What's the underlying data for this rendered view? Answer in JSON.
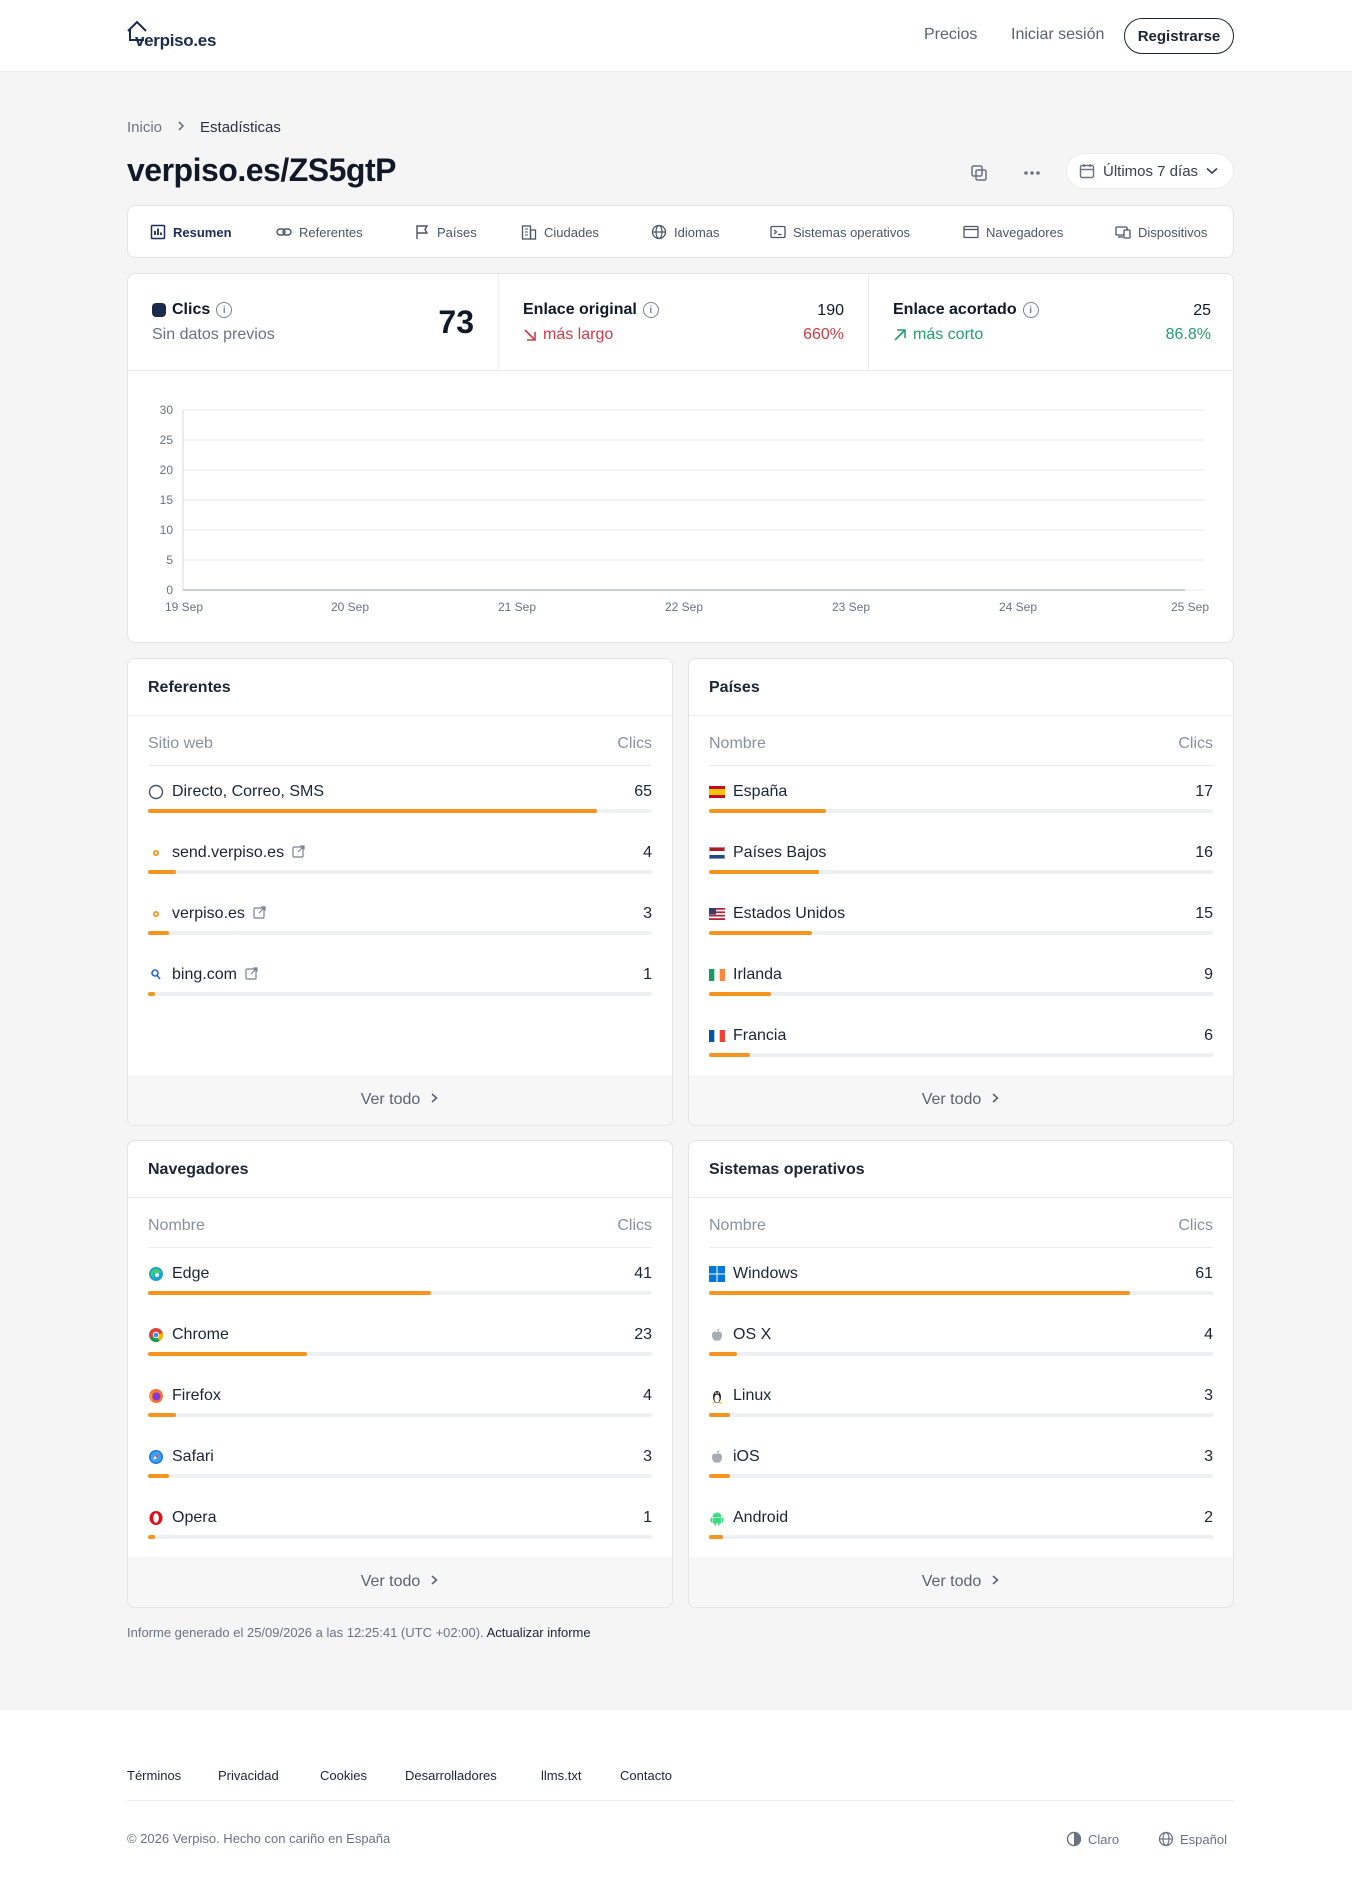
{
  "header": {
    "logo_text": "verpiso.es",
    "nav": [
      "Precios",
      "Iniciar sesión"
    ],
    "register_label": "Registrarse"
  },
  "breadcrumb": {
    "home": "Inicio",
    "current": "Estadísticas"
  },
  "page_title": "verpiso.es/ZS5gtP",
  "range_label": "Últimos 7 días",
  "tabs": [
    {
      "label": "Resumen",
      "icon": "bar-chart-icon"
    },
    {
      "label": "Referentes",
      "icon": "link-icon"
    },
    {
      "label": "Países",
      "icon": "flag-icon"
    },
    {
      "label": "Ciudades",
      "icon": "building-icon"
    },
    {
      "label": "Idiomas",
      "icon": "globe-icon"
    },
    {
      "label": "Sistemas operativos",
      "icon": "terminal-icon"
    },
    {
      "label": "Navegadores",
      "icon": "browser-window-icon"
    },
    {
      "label": "Dispositivos",
      "icon": "devices-icon"
    }
  ],
  "stats": {
    "clicks": {
      "label": "Clics",
      "sub": "Sin datos previos",
      "value": "73"
    },
    "original": {
      "label": "Enlace original",
      "sub": "más largo",
      "value": "190",
      "pct": "660%"
    },
    "shortened": {
      "label": "Enlace acortado",
      "sub": "más corto",
      "value": "25",
      "pct": "86.8%"
    }
  },
  "chart_data": {
    "type": "line",
    "x": [
      "19 Sep",
      "20 Sep",
      "21 Sep",
      "22 Sep",
      "23 Sep",
      "24 Sep",
      "25 Sep"
    ],
    "series": [
      {
        "values": [
          0,
          0,
          0,
          0,
          0,
          0,
          0
        ]
      }
    ],
    "y_ticks": [
      "0",
      "5",
      "10",
      "15",
      "20",
      "25",
      "30"
    ],
    "ylim": [
      0,
      30
    ],
    "grid": true,
    "xlabel": "",
    "ylabel": ""
  },
  "referrers": {
    "title": "Referentes",
    "col_left": "Sitio web",
    "col_right": "Clics",
    "footer": "Ver todo",
    "items": [
      {
        "label": "Directo, Correo, SMS",
        "value": "65",
        "fraction": 0.89,
        "icon": "circle-icon"
      },
      {
        "label": "send.verpiso.es",
        "value": "4",
        "fraction": 0.055,
        "icon": "favicon-icon"
      },
      {
        "label": "verpiso.es",
        "value": "3",
        "fraction": 0.041,
        "icon": "favicon-icon"
      },
      {
        "label": "bing.com",
        "value": "1",
        "fraction": 0.014,
        "icon": "search-icon"
      }
    ]
  },
  "countries": {
    "title": "Países",
    "col_left": "Nombre",
    "col_right": "Clics",
    "footer": "Ver todo",
    "items": [
      {
        "label": "España",
        "value": "17",
        "fraction": 0.233,
        "icon": "flag-es-icon"
      },
      {
        "label": "Países Bajos",
        "value": "16",
        "fraction": 0.219,
        "icon": "flag-nl-icon"
      },
      {
        "label": "Estados Unidos",
        "value": "15",
        "fraction": 0.205,
        "icon": "flag-us-icon"
      },
      {
        "label": "Irlanda",
        "value": "9",
        "fraction": 0.123,
        "icon": "flag-ie-icon"
      },
      {
        "label": "Francia",
        "value": "6",
        "fraction": 0.082,
        "icon": "flag-fr-icon"
      }
    ]
  },
  "browsers": {
    "title": "Navegadores",
    "col_left": "Nombre",
    "col_right": "Clics",
    "footer": "Ver todo",
    "items": [
      {
        "label": "Edge",
        "value": "41",
        "fraction": 0.562,
        "icon": "edge-icon"
      },
      {
        "label": "Chrome",
        "value": "23",
        "fraction": 0.315,
        "icon": "chrome-icon"
      },
      {
        "label": "Firefox",
        "value": "4",
        "fraction": 0.055,
        "icon": "firefox-icon"
      },
      {
        "label": "Safari",
        "value": "3",
        "fraction": 0.041,
        "icon": "safari-icon"
      },
      {
        "label": "Opera",
        "value": "1",
        "fraction": 0.014,
        "icon": "opera-icon"
      }
    ]
  },
  "os": {
    "title": "Sistemas operativos",
    "col_left": "Nombre",
    "col_right": "Clics",
    "footer": "Ver todo",
    "items": [
      {
        "label": "Windows",
        "value": "61",
        "fraction": 0.836,
        "icon": "windows-icon"
      },
      {
        "label": "OS X",
        "value": "4",
        "fraction": 0.055,
        "icon": "apple-icon"
      },
      {
        "label": "Linux",
        "value": "3",
        "fraction": 0.041,
        "icon": "linux-icon"
      },
      {
        "label": "iOS",
        "value": "3",
        "fraction": 0.041,
        "icon": "apple-icon"
      },
      {
        "label": "Android",
        "value": "2",
        "fraction": 0.027,
        "icon": "android-icon"
      }
    ]
  },
  "report": {
    "text": "Informe generado el 25/09/2026 a las 12:25:41 (UTC +02:00).",
    "link": "Actualizar informe"
  },
  "footer": {
    "links": [
      "Términos",
      "Privacidad",
      "Cookies",
      "Desarrolladores",
      "llms.txt",
      "Contacto"
    ],
    "copyright": "© 2026 Verpiso. Hecho con cariño en España",
    "theme": "Claro",
    "language": "Español"
  },
  "colors": {
    "accent": "#f7941d",
    "negative": "#d03a44",
    "positive": "#22a06b",
    "brand": "#1a2b4c"
  }
}
